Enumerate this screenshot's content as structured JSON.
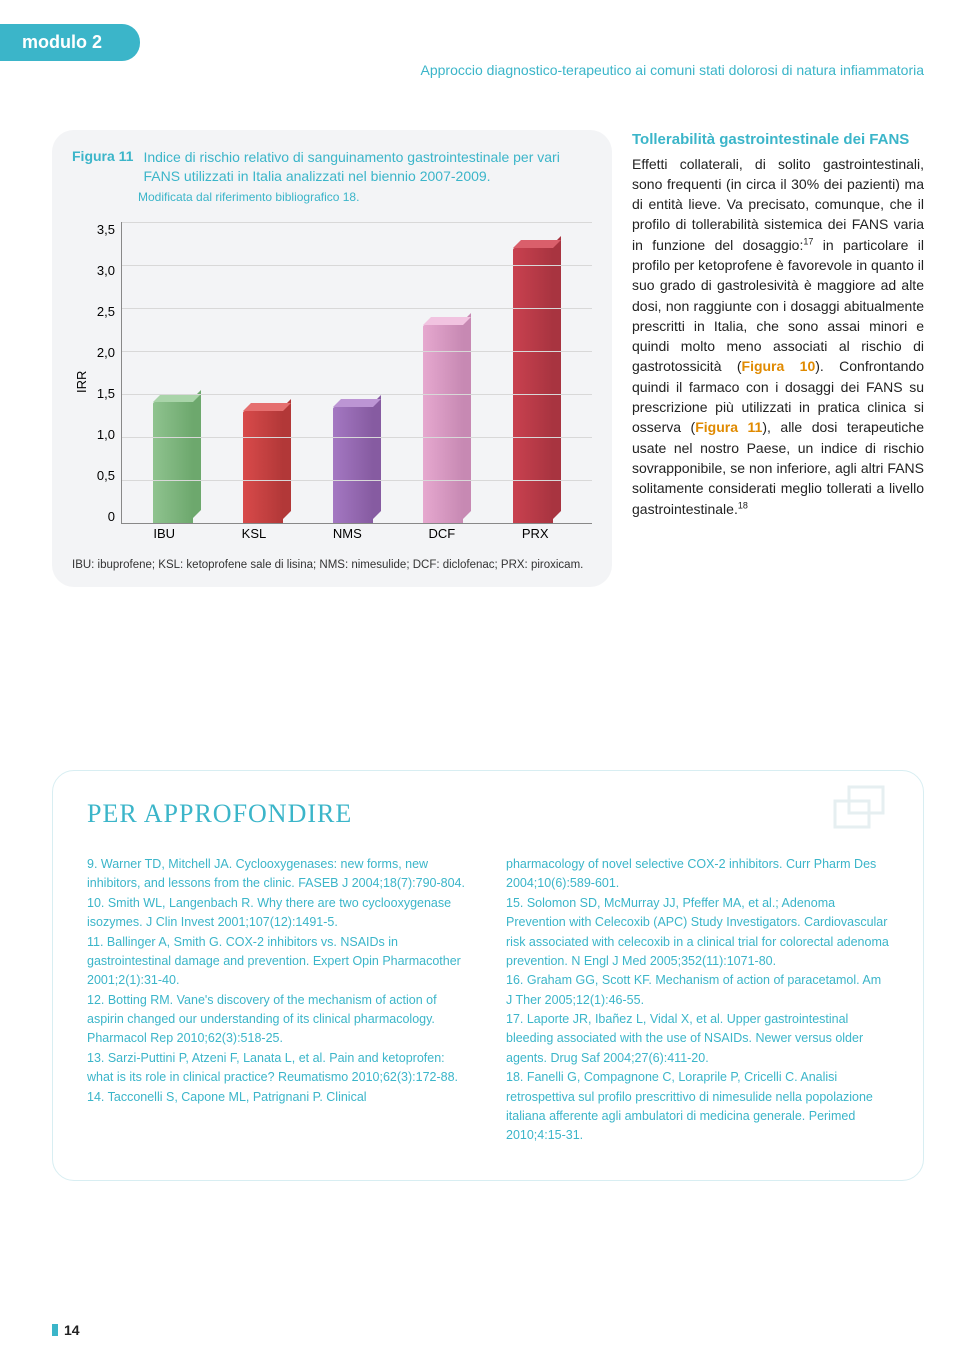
{
  "header": {
    "tab": "modulo 2",
    "subtitle": "Approccio diagnostico-terapeutico ai comuni stati dolorosi di natura infiammatoria"
  },
  "figure": {
    "number": "Figura 11",
    "title": "Indice di rischio relativo di sanguinamento gastrointestinale per vari FANS utilizzati in Italia analizzati nel biennio 2007-2009.",
    "source": "Modificata dal riferimento bibliografico 18.",
    "y_label": "IRR",
    "ylim": [
      0,
      3.5
    ],
    "ytick_step": 0.5,
    "yticks": [
      "3,5",
      "3,0",
      "2,5",
      "2,0",
      "1,5",
      "1,0",
      "0,5",
      "0"
    ],
    "categories": [
      "IBU",
      "KSL",
      "NMS",
      "DCF",
      "PRX"
    ],
    "values": [
      1.4,
      1.3,
      1.35,
      2.3,
      3.2
    ],
    "bar_colors_front": [
      "#8fc38f",
      "#d84a4a",
      "#a478c2",
      "#e6a8cf",
      "#c9414f"
    ],
    "bar_colors_side": [
      "#6da86d",
      "#b23838",
      "#865ba1",
      "#c789b3",
      "#a83440"
    ],
    "bar_colors_top": [
      "#a9d4a9",
      "#e56f6f",
      "#bc95d4",
      "#f1c3e0",
      "#da5f6b"
    ],
    "grid_color": "#d8d8d8",
    "background": "#f3f4f6",
    "caption": "IBU: ibuprofene; KSL: ketoprofene sale di lisina; NMS: nimesulide; DCF: diclofenac; PRX: piroxicam."
  },
  "side": {
    "title": "Tollerabilità gastrointestinale dei FANS",
    "body_parts": {
      "p1": "Effetti collaterali, di solito gastrointestinali, sono frequenti (in circa il 30% dei pazienti) ma di entità lieve. Va precisato, comunque, che il profilo di tollerabilità sistemica dei FANS varia in funzione del dosaggio:",
      "sup1": "17",
      "p2": " in particolare il profilo per ketoprofene è favorevole in quanto il suo grado di gastrolesività è maggiore ad alte dosi, non raggiunte con i dosaggi abitualmente prescritti in Italia, che sono assai minori e quindi molto meno associati al rischio di gastrotossicità (",
      "fig10": "Figura 10",
      "p3": "). Confrontando quindi il farmaco con i dosaggi dei FANS su prescrizione più utilizzati in pratica clinica si osserva (",
      "fig11": "Figura 11",
      "p4": "), alle dosi terapeutiche usate nel nostro Paese, un indice di rischio sovrapponibile, se non inferiore, agli altri FANS solitamente considerati meglio tollerati a livello gastrointestinale.",
      "sup2": "18"
    }
  },
  "refs": {
    "heading": "PER APPROFONDIRE",
    "col1": "9.  Warner TD, Mitchell JA. Cyclooxygenases: new forms, new inhibitors, and lessons from the clinic. FASEB J 2004;18(7):790-804.\n10. Smith WL, Langenbach R. Why there are two cyclooxygenase isozymes. J Clin Invest 2001;107(12):1491-5.\n11. Ballinger A, Smith G. COX-2 inhibitors vs. NSAIDs in gastrointestinal damage and prevention. Expert Opin Pharmacother 2001;2(1):31-40.\n12. Botting RM. Vane's discovery of the mechanism of action of aspirin changed our understanding of its clinical pharmacology. Pharmacol Rep 2010;62(3):518-25.\n13. Sarzi-Puttini P, Atzeni F, Lanata L, et al. Pain and ketoprofen: what is its role in clinical practice? Reumatismo 2010;62(3):172-88.\n14. Tacconelli S, Capone ML, Patrignani P. Clinical",
    "col2": "pharmacology of novel selective COX-2 inhibitors. Curr Pharm Des 2004;10(6):589-601.\n15. Solomon SD, McMurray JJ, Pfeffer MA, et al.; Adenoma Prevention with Celecoxib (APC) Study Investigators. Cardiovascular risk associated with celecoxib in a clinical trial for colorectal adenoma prevention. N Engl J Med 2005;352(11):1071-80.\n16. Graham GG, Scott KF. Mechanism of action of paracetamol. Am J Ther 2005;12(1):46-55.\n17. Laporte JR, Ibañez L, Vidal X, et al. Upper gastrointestinal bleeding associated with the use of NSAIDs. Newer versus older agents. Drug Saf 2004;27(6):411-20.\n18. Fanelli G, Compagnone C, Loraprile P, Cricelli C. Analisi retrospettiva sul profilo prescrittivo di nimesulide nella popolazione italiana afferente agli ambulatori di medicina generale. Perimed 2010;4:15-31."
  },
  "page_number": "14"
}
